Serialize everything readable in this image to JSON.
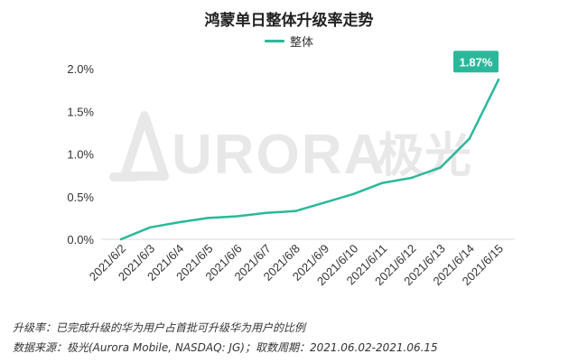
{
  "chart_data": {
    "type": "line",
    "title": "鸿蒙单日整体升级率走势",
    "xlabel": "",
    "ylabel": "",
    "x": [
      "2021/6/2",
      "2021/6/3",
      "2021/6/4",
      "2021/6/5",
      "2021/6/6",
      "2021/6/7",
      "2021/6/8",
      "2021/6/9",
      "2021/6/10",
      "2021/6/11",
      "2021/6/12",
      "2021/6/13",
      "2021/6/14",
      "2021/6/15"
    ],
    "series": [
      {
        "name": "整体",
        "values": [
          0.0,
          0.14,
          0.2,
          0.25,
          0.27,
          0.31,
          0.33,
          0.43,
          0.53,
          0.66,
          0.72,
          0.84,
          1.18,
          1.87
        ],
        "color": "#2bb89a"
      }
    ],
    "ylim": [
      0,
      2.0
    ],
    "yticks": [
      "0.0%",
      "0.5%",
      "1.0%",
      "1.5%",
      "2.0%"
    ],
    "ytick_values": [
      0,
      0.5,
      1.0,
      1.5,
      2.0
    ],
    "grid": false,
    "legend_position": "top-center",
    "annotation": {
      "text": "1.87%",
      "index": 13,
      "bg_color": "#2bb89a",
      "text_color": "#ffffff"
    }
  },
  "watermark": {
    "text": "URORA",
    "cn": "极光"
  },
  "footnotes": [
    "升级率：已完成升级的华为用户占首批可升级华为用户的比例",
    "数据来源：极光(Aurora Mobile, NASDAQ: JG)；取数周期：2021.06.02-2021.06.15"
  ]
}
